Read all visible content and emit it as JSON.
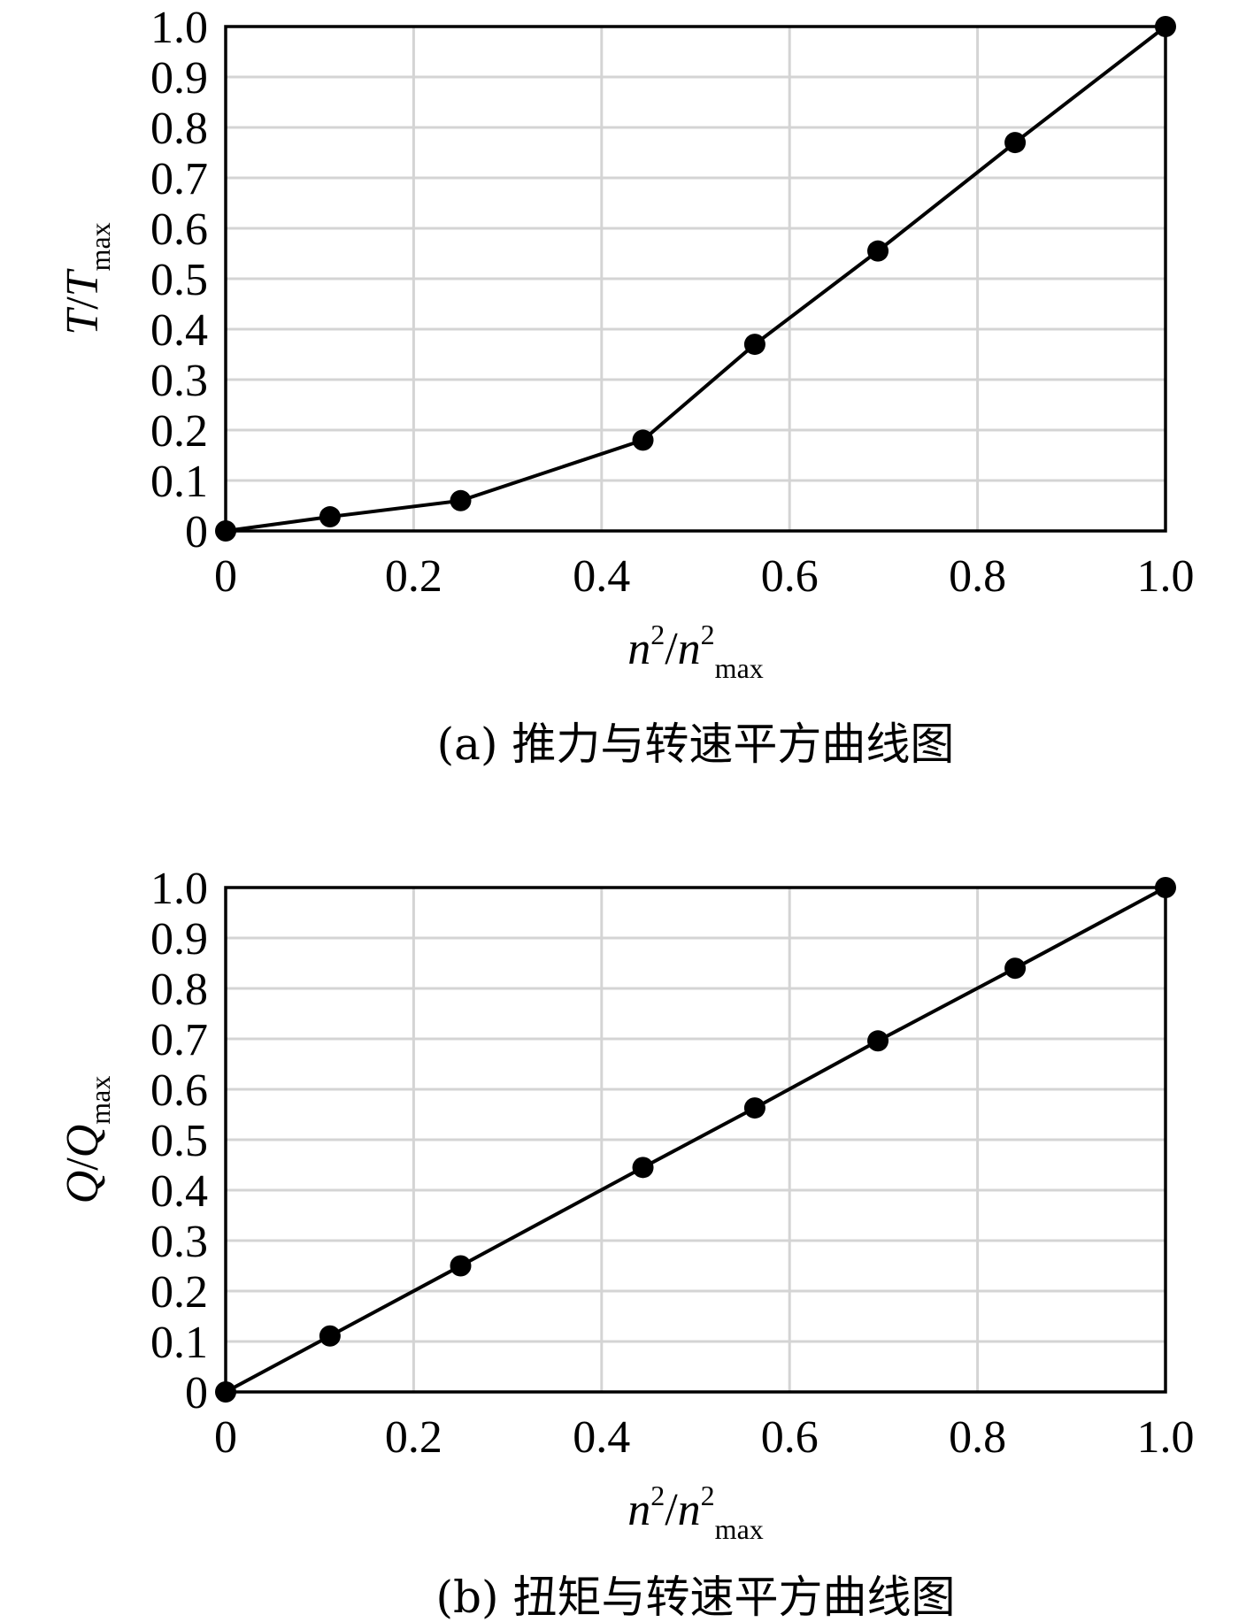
{
  "chart_data": [
    {
      "type": "line",
      "caption": "(a) 推力与转速平方曲线图",
      "xlabel": {
        "base": "n",
        "sup": "2",
        "sep": "/",
        "base2": "n",
        "sup2": "2",
        "sub2": "max"
      },
      "ylabel": {
        "base": "T",
        "sep": "/",
        "base2": "T",
        "sub2": "max"
      },
      "xlim": [
        0,
        1
      ],
      "ylim": [
        0,
        1
      ],
      "xticks": [
        "0",
        "0.2",
        "0.4",
        "0.6",
        "0.8",
        "1.0"
      ],
      "yticks": [
        "0",
        "0.1",
        "0.2",
        "0.3",
        "0.4",
        "0.5",
        "0.6",
        "0.7",
        "0.8",
        "0.9",
        "1.0"
      ],
      "grid": true,
      "series": [
        {
          "x": [
            0,
            0.111,
            0.25,
            0.444,
            0.563,
            0.694,
            0.84,
            1.0
          ],
          "y": [
            0,
            0.028,
            0.06,
            0.18,
            0.37,
            0.555,
            0.77,
            1.0
          ]
        }
      ]
    },
    {
      "type": "line",
      "caption": "(b) 扭矩与转速平方曲线图",
      "xlabel": {
        "base": "n",
        "sup": "2",
        "sep": "/",
        "base2": "n",
        "sup2": "2",
        "sub2": "max"
      },
      "ylabel": {
        "base": "Q",
        "sep": "/",
        "base2": "Q",
        "sub2": "max"
      },
      "xlim": [
        0,
        1
      ],
      "ylim": [
        0,
        1
      ],
      "xticks": [
        "0",
        "0.2",
        "0.4",
        "0.6",
        "0.8",
        "1.0"
      ],
      "yticks": [
        "0",
        "0.1",
        "0.2",
        "0.3",
        "0.4",
        "0.5",
        "0.6",
        "0.7",
        "0.8",
        "0.9",
        "1.0"
      ],
      "grid": true,
      "series": [
        {
          "x": [
            0,
            0.111,
            0.25,
            0.444,
            0.563,
            0.694,
            0.84,
            1.0
          ],
          "y": [
            0,
            0.111,
            0.25,
            0.445,
            0.563,
            0.696,
            0.84,
            1.0
          ]
        }
      ]
    }
  ]
}
